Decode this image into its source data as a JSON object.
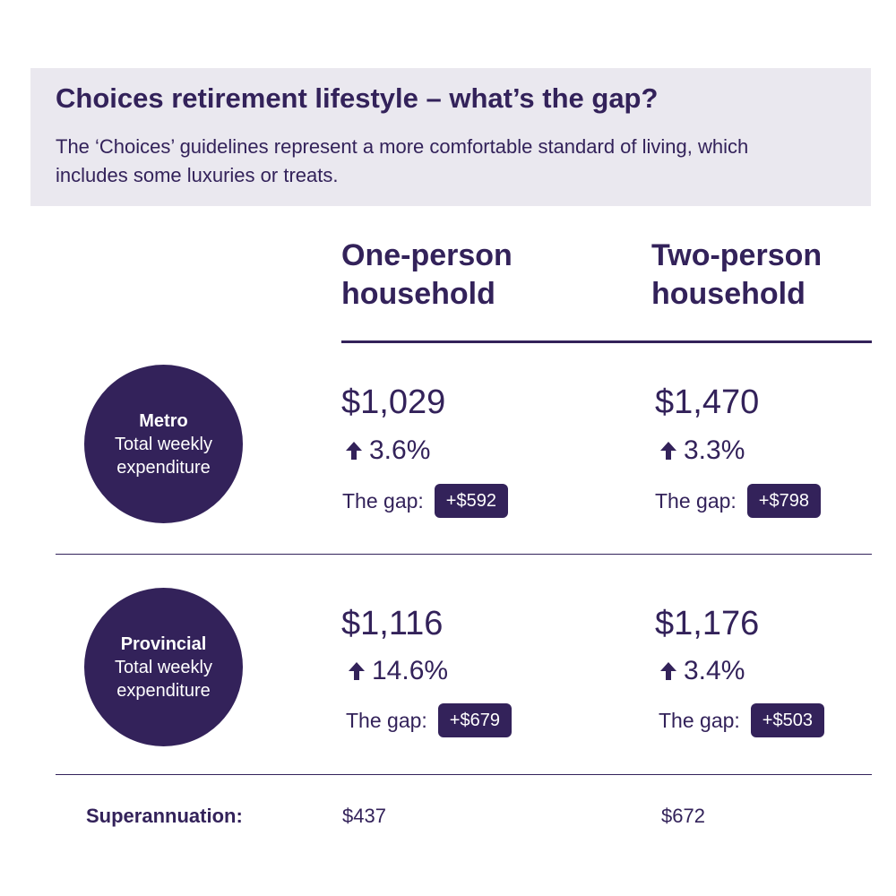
{
  "header": {
    "title": "Choices retirement lifestyle – what’s the gap?",
    "subtitle": "The ‘Choices’ guidelines represent a more comfortable standard of living, which includes some luxuries or treats."
  },
  "columns": {
    "one": "One-person household",
    "two": "Two-person household"
  },
  "rows": {
    "metro": {
      "region": "Metro",
      "desc": "Total weekly expenditure",
      "one": {
        "amount": "$1,029",
        "change": "3.6%",
        "gap_label": "The gap:",
        "gap": "+$592"
      },
      "two": {
        "amount": "$1,470",
        "change": "3.3%",
        "gap_label": "The gap:",
        "gap": "+$798"
      }
    },
    "provincial": {
      "region": "Provincial",
      "desc": "Total weekly expenditure",
      "one": {
        "amount": "$1,116",
        "change": "14.6%",
        "gap_label": "The gap:",
        "gap": "+$679"
      },
      "two": {
        "amount": "$1,176",
        "change": "3.4%",
        "gap_label": "The gap:",
        "gap": "+$503"
      }
    }
  },
  "superannuation": {
    "label": "Superannuation:",
    "one": "$437",
    "two": "$672"
  },
  "icons": {
    "increase": "arrow-up-icon"
  },
  "colors": {
    "primary": "#33225a",
    "header_bg": "#eae8ef"
  }
}
